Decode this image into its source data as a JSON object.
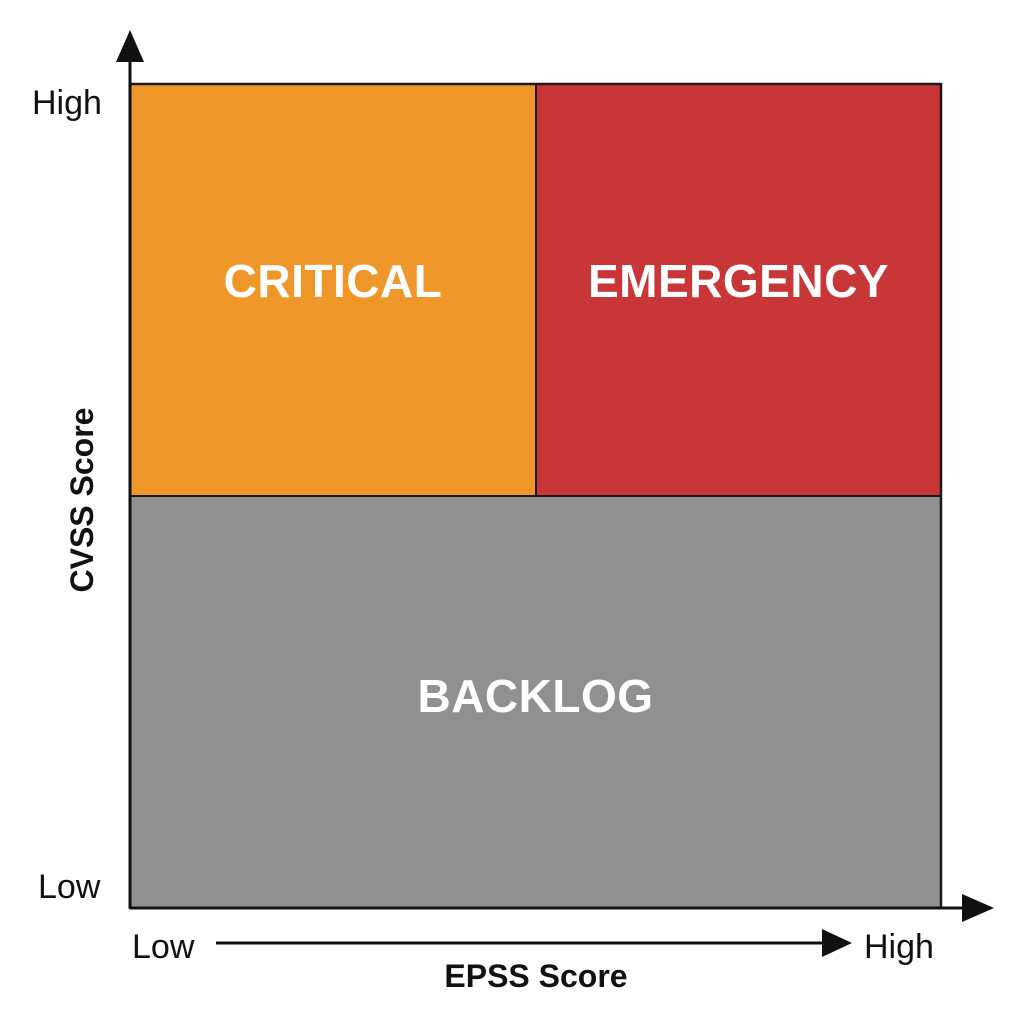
{
  "quadrants": {
    "critical": {
      "label": "CRITICAL",
      "color": "#f0972a"
    },
    "emergency": {
      "label": "EMERGENCY",
      "color": "#c93638"
    },
    "backlog": {
      "label": "BACKLOG",
      "color": "#8f9191"
    }
  },
  "y_axis": {
    "title": "CVSS Score",
    "high_label": "High",
    "low_label": "Low"
  },
  "x_axis": {
    "title": "EPSS Score",
    "low_label": "Low",
    "high_label": "High"
  }
}
